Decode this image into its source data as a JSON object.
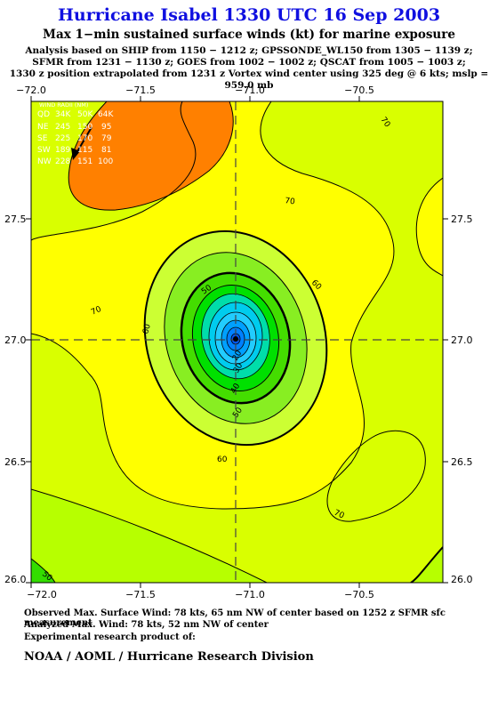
{
  "chart_data": {
    "type": "contour",
    "title": "Hurricane Isabel 1330 UTC 16 Sep 2003",
    "subtitle": "Max 1−min sustained surface winds (kt) for marine exposure",
    "analysis_lines": [
      "Analysis based on  SHIP from 1150 − 1212 z;  GPSSONDE_WL150 from 1305 − 1139 z;",
      "SFMR from 1231 − 1130 z;  GOES from 1002 − 1002 z;  QSCAT from 1005 − 1003 z;",
      "1330 z position extrapolated from 1231 z Vortex wind center using 325 deg @ 6 kts; mslp = 959.0 mb"
    ],
    "x_ticks": [
      "−72.0",
      "−71.5",
      "−71.0",
      "−70.5"
    ],
    "y_ticks": [
      "26.0",
      "26.5",
      "27.0",
      "27.5"
    ],
    "xlim": [
      -72.0,
      -70.2
    ],
    "ylim": [
      26.0,
      27.98
    ],
    "center": {
      "lon": -71.0,
      "lat": 27.0
    },
    "contour_labels": [
      "70",
      "70",
      "70",
      "60",
      "60",
      "50",
      "50",
      "40",
      "30",
      "20",
      "50",
      "60",
      "70",
      "70",
      "50"
    ],
    "wind_radii_table": {
      "header": "WIND RADII (NM)",
      "columns": [
        "QD",
        "34K",
        "50K",
        "64K"
      ],
      "rows": [
        [
          "NE",
          "245",
          "150",
          "95"
        ],
        [
          "SE",
          "225",
          "170",
          "79"
        ],
        [
          "SW",
          "189",
          "115",
          "81"
        ],
        [
          "NW",
          "228",
          "151",
          "100"
        ]
      ]
    },
    "colors": {
      "lt60": "#ffff00",
      "60_70": "#d9ff00",
      "70_80": "#b7ff00",
      "gt80": "#ff8000",
      "core_green": "#00e000",
      "core_blue": "#00a0ff"
    }
  },
  "footer": {
    "observed": "Observed Max. Surface Wind: 78 kts, 65 nm NW of center based on 1252 z SFMR sfc measurement",
    "analyzed": "Analyzed Max. Wind: 78 kts, 52 nm NW of center",
    "experimental": "Experimental research product of:",
    "org": "NOAA / AOML / Hurricane Research Division"
  }
}
